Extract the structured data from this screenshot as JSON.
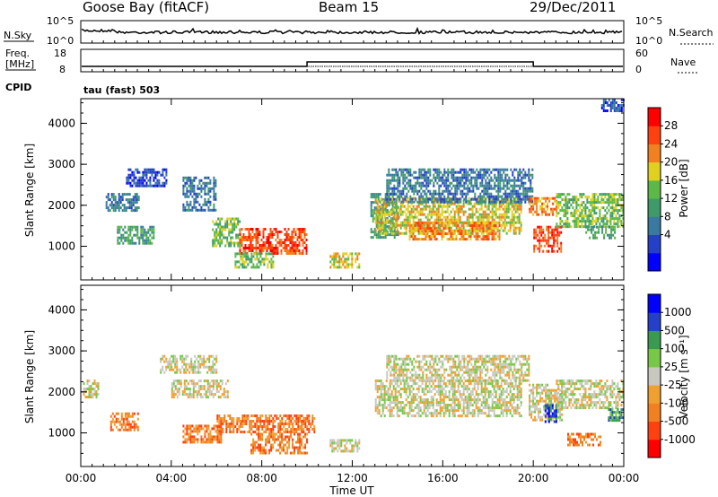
{
  "header": {
    "station": "Goose Bay (fitACF)",
    "beam": "Beam 15",
    "date": "29/Dec/2011"
  },
  "noise_panel": {
    "left_label": "N.Sky",
    "left_ticks": [
      "10^5",
      "10^0"
    ],
    "right_ticks": [
      "10^5",
      "10^0"
    ],
    "right_label": "N.Search"
  },
  "freq_panel": {
    "left_label_line1": "Freq.",
    "left_label_line2": "[MHz]",
    "left_ticks": [
      "18",
      "8"
    ],
    "right_ticks": [
      "60",
      "0"
    ],
    "right_label": "Nave",
    "cpid_label": "CPID",
    "cpid_value": "tau (fast) 503",
    "nave_step": {
      "start_hour": 10.0,
      "end_hour": 20.0,
      "level": 0.55
    }
  },
  "chart_data": [
    {
      "type": "heatmap",
      "name": "power",
      "ylabel": "Slant Range [km]",
      "xlabel": "Time UT",
      "x_ticks": [
        "00:00",
        "04:00",
        "08:00",
        "12:00",
        "16:00",
        "20:00",
        "00:00"
      ],
      "x_range_hours": [
        0,
        24
      ],
      "y_ticks": [
        1000,
        2000,
        3000,
        4000
      ],
      "ylim": [
        180,
        4600
      ],
      "colorbar": {
        "label": "Power [dB]",
        "ticks": [
          "28",
          "24",
          "20",
          "16",
          "12",
          "8",
          "4"
        ],
        "colors": [
          "#0000ff",
          "#2440c8",
          "#3a7aa0",
          "#3f9a6a",
          "#5cb848",
          "#e0d020",
          "#f08020",
          "#ff4010",
          "#ff0000"
        ]
      },
      "regions": [
        {
          "t0": 1.1,
          "t1": 2.6,
          "r0": 1900,
          "r1": 2300,
          "level": 2
        },
        {
          "t0": 1.6,
          "t1": 3.2,
          "r0": 1100,
          "r1": 1500,
          "level": 3
        },
        {
          "t0": 2.0,
          "t1": 3.8,
          "r0": 2500,
          "r1": 2900,
          "level": 1
        },
        {
          "t0": 4.5,
          "t1": 6.0,
          "r0": 1900,
          "r1": 2700,
          "level": 2
        },
        {
          "t0": 5.8,
          "t1": 7.0,
          "r0": 1000,
          "r1": 1700,
          "level": 4
        },
        {
          "t0": 7.0,
          "t1": 10.0,
          "r0": 850,
          "r1": 1450,
          "level": 7
        },
        {
          "t0": 6.8,
          "t1": 8.5,
          "r0": 500,
          "r1": 850,
          "level": 4
        },
        {
          "t0": 11.0,
          "t1": 12.3,
          "r0": 500,
          "r1": 850,
          "level": 5
        },
        {
          "t0": 12.8,
          "t1": 14.0,
          "r0": 1200,
          "r1": 2300,
          "level": 3
        },
        {
          "t0": 13.0,
          "t1": 19.5,
          "r0": 1300,
          "r1": 2200,
          "level": 5
        },
        {
          "t0": 14.5,
          "t1": 18.5,
          "r0": 1200,
          "r1": 1600,
          "level": 6
        },
        {
          "t0": 13.5,
          "t1": 20.0,
          "r0": 2100,
          "r1": 2900,
          "level": 2
        },
        {
          "t0": 20.0,
          "t1": 21.2,
          "r0": 900,
          "r1": 1500,
          "level": 7
        },
        {
          "t0": 19.8,
          "t1": 21.0,
          "r0": 1800,
          "r1": 2200,
          "level": 6
        },
        {
          "t0": 21.0,
          "t1": 24.0,
          "r0": 1500,
          "r1": 2300,
          "level": 4
        },
        {
          "t0": 22.3,
          "t1": 23.6,
          "r0": 1200,
          "r1": 1500,
          "level": 3
        },
        {
          "t0": 23.0,
          "t1": 24.0,
          "r0": 4300,
          "r1": 4600,
          "level": 1
        }
      ]
    },
    {
      "type": "heatmap",
      "name": "velocity",
      "ylabel": "Slant Range [km]",
      "xlabel": "Time UT",
      "x_ticks": [
        "00:00",
        "04:00",
        "08:00",
        "12:00",
        "16:00",
        "20:00",
        "00:00"
      ],
      "x_range_hours": [
        0,
        24
      ],
      "y_ticks": [
        1000,
        2000,
        3000,
        4000
      ],
      "ylim": [
        180,
        4600
      ],
      "colorbar": {
        "label": "Velocity [m s⁻¹]",
        "ticks": [
          "1000",
          "500",
          "100",
          "25",
          "-25",
          "-100",
          "-500",
          "-1000"
        ],
        "colors": [
          "#ff0000",
          "#ff4010",
          "#f08020",
          "#f0a030",
          "#c8c8c0",
          "#78c848",
          "#3a9a50",
          "#2440c8",
          "#0000ff"
        ]
      },
      "regions": [
        {
          "t0": 0.1,
          "t1": 0.8,
          "r0": 1900,
          "r1": 2300,
          "level": 4
        },
        {
          "t0": 1.3,
          "t1": 2.5,
          "r0": 1100,
          "r1": 1500,
          "level": 2
        },
        {
          "t0": 3.5,
          "t1": 6.0,
          "r0": 2500,
          "r1": 2900,
          "level": 4
        },
        {
          "t0": 4.0,
          "t1": 6.5,
          "r0": 1900,
          "r1": 2300,
          "level": 4
        },
        {
          "t0": 4.5,
          "t1": 6.2,
          "r0": 800,
          "r1": 1200,
          "level": 2
        },
        {
          "t0": 6.0,
          "t1": 10.3,
          "r0": 1000,
          "r1": 1450,
          "level": 2
        },
        {
          "t0": 7.5,
          "t1": 10.0,
          "r0": 500,
          "r1": 1000,
          "level": 2
        },
        {
          "t0": 11.0,
          "t1": 12.3,
          "r0": 550,
          "r1": 850,
          "level": 4
        },
        {
          "t0": 13.0,
          "t1": 19.5,
          "r0": 1400,
          "r1": 2300,
          "level": 4
        },
        {
          "t0": 13.5,
          "t1": 19.8,
          "r0": 2300,
          "r1": 2900,
          "level": 4
        },
        {
          "t0": 19.8,
          "t1": 21.3,
          "r0": 1300,
          "r1": 2200,
          "level": 4
        },
        {
          "t0": 20.5,
          "t1": 21.0,
          "r0": 1300,
          "r1": 1700,
          "level": 7
        },
        {
          "t0": 21.0,
          "t1": 24.0,
          "r0": 1600,
          "r1": 2300,
          "level": 4
        },
        {
          "t0": 23.3,
          "t1": 24.0,
          "r0": 1300,
          "r1": 1600,
          "level": 6
        },
        {
          "t0": 21.5,
          "t1": 23.0,
          "r0": 700,
          "r1": 1000,
          "level": 2
        }
      ]
    }
  ]
}
